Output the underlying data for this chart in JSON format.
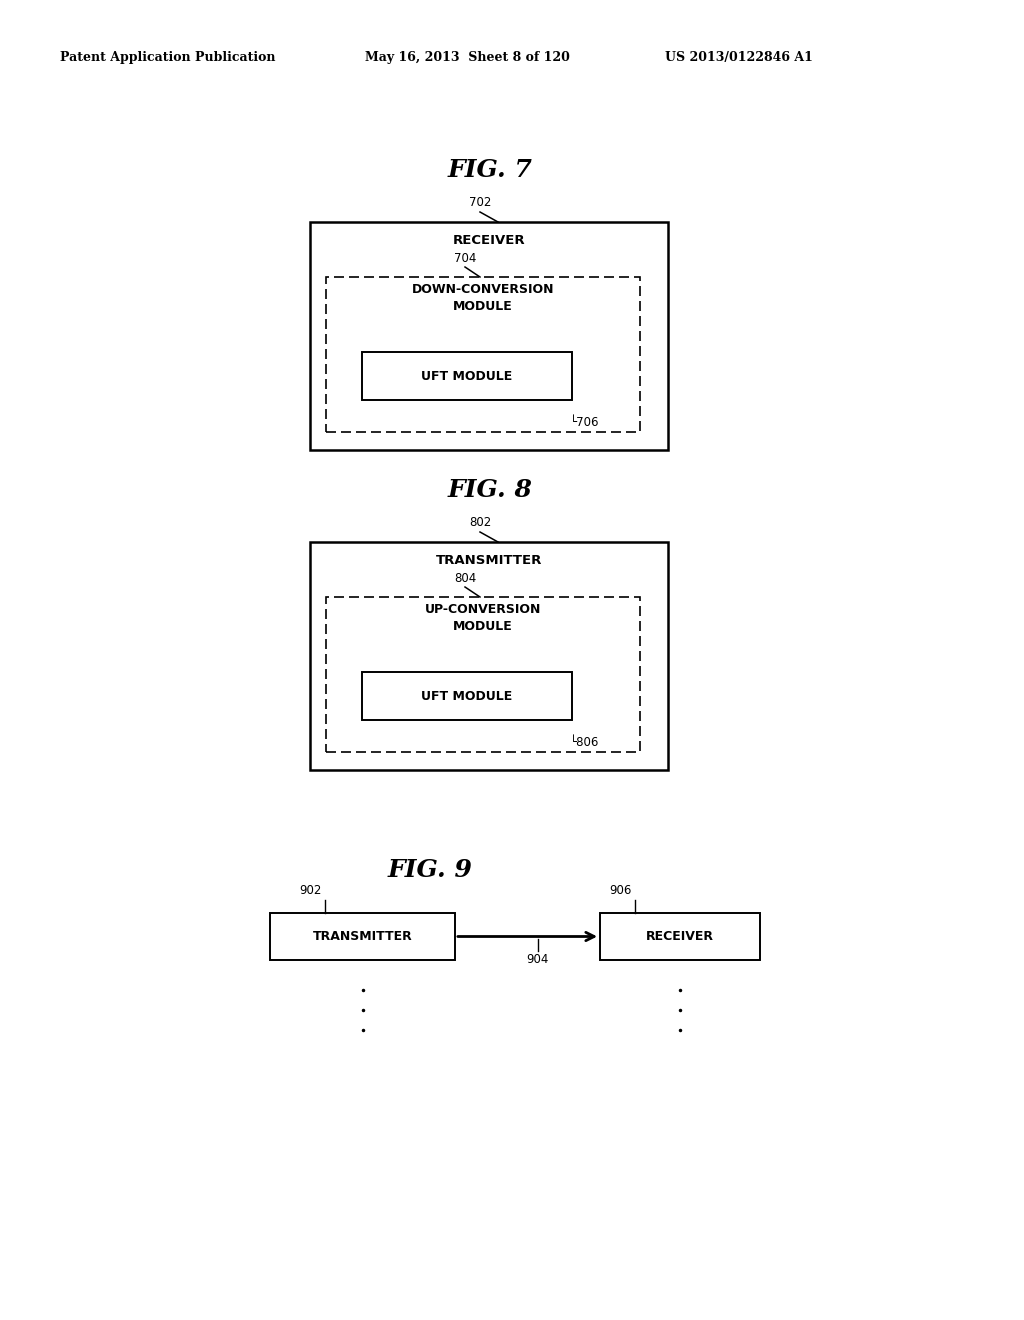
{
  "bg_color": "#ffffff",
  "header_left": "Patent Application Publication",
  "header_mid": "May 16, 2013  Sheet 8 of 120",
  "header_right": "US 2013/0122846 A1",
  "fig7": {
    "title": "FIG. 7",
    "label_702": "702",
    "label_704": "704",
    "label_706": "706",
    "outer_label": "RECEIVER",
    "inner_label1": "DOWN-CONVERSION\nMODULE",
    "inner_label2": "UFT MODULE"
  },
  "fig8": {
    "title": "FIG. 8",
    "label_802": "802",
    "label_804": "804",
    "label_806": "806",
    "outer_label": "TRANSMITTER",
    "inner_label1": "UP-CONVERSION\nMODULE",
    "inner_label2": "UFT MODULE"
  },
  "fig9": {
    "title": "FIG. 9",
    "label_902": "902",
    "label_904": "904",
    "label_906": "906",
    "box1_label": "TRANSMITTER",
    "box2_label": "RECEIVER"
  }
}
